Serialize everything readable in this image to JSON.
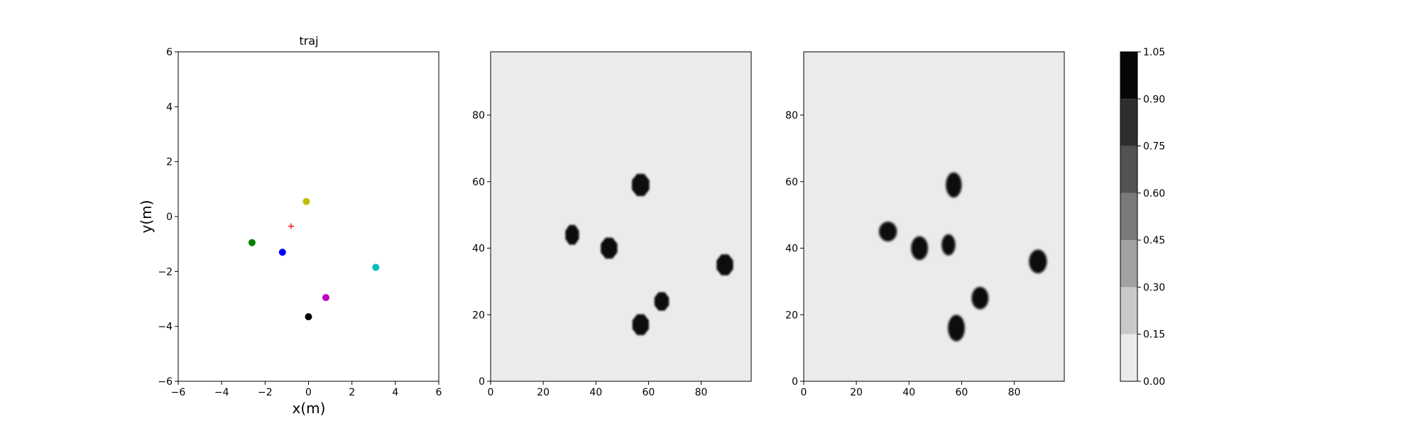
{
  "chart_data": [
    {
      "type": "scatter",
      "title": "traj",
      "xlabel": "x(m)",
      "ylabel": "y(m)",
      "xlim": [
        -6,
        6
      ],
      "ylim": [
        -6,
        6
      ],
      "xticks": [
        "−6",
        "−4",
        "−2",
        "0",
        "2",
        "4",
        "6"
      ],
      "yticks": [
        "−6",
        "−4",
        "−2",
        "0",
        "2",
        "4",
        "6"
      ],
      "grid": false,
      "points": [
        {
          "x": -0.1,
          "y": 0.55,
          "color": "#bfbf00",
          "marker": "circle"
        },
        {
          "x": -2.6,
          "y": -0.95,
          "color": "#008000",
          "marker": "circle"
        },
        {
          "x": -1.2,
          "y": -1.3,
          "color": "#0000ff",
          "marker": "circle"
        },
        {
          "x": 3.1,
          "y": -1.85,
          "color": "#00bfbf",
          "marker": "circle"
        },
        {
          "x": 0.8,
          "y": -2.95,
          "color": "#bf00bf",
          "marker": "circle"
        },
        {
          "x": 0.0,
          "y": -3.65,
          "color": "#000000",
          "marker": "circle"
        },
        {
          "x": -0.8,
          "y": -0.35,
          "color": "#ff0000",
          "marker": "plus"
        }
      ]
    },
    {
      "type": "heatmap",
      "title": "",
      "xlim": [
        0,
        99
      ],
      "ylim": [
        0,
        99
      ],
      "xticks": [
        "0",
        "20",
        "40",
        "60",
        "80"
      ],
      "yticks": [
        "0",
        "20",
        "40",
        "60",
        "80"
      ],
      "background_value": 0.0,
      "blobs": [
        {
          "x": 57,
          "y": 59,
          "rx": 3.6,
          "ry": 3.6,
          "shape": "octagon",
          "value": 1.0
        },
        {
          "x": 31,
          "y": 44,
          "rx": 2.8,
          "ry": 3.2,
          "shape": "octagon",
          "value": 1.0
        },
        {
          "x": 45,
          "y": 40,
          "rx": 3.4,
          "ry": 3.4,
          "shape": "octagon",
          "value": 1.0
        },
        {
          "x": 89,
          "y": 35,
          "rx": 3.4,
          "ry": 3.4,
          "shape": "octagon",
          "value": 1.0
        },
        {
          "x": 65,
          "y": 24,
          "rx": 3.0,
          "ry": 3.0,
          "shape": "octagon",
          "value": 1.0
        },
        {
          "x": 57,
          "y": 17,
          "rx": 3.4,
          "ry": 3.4,
          "shape": "octagon",
          "value": 1.0
        }
      ]
    },
    {
      "type": "heatmap",
      "title": "",
      "xlim": [
        0,
        99
      ],
      "ylim": [
        0,
        99
      ],
      "xticks": [
        "0",
        "20",
        "40",
        "60",
        "80"
      ],
      "yticks": [
        "0",
        "20",
        "40",
        "60",
        "80"
      ],
      "background_value": 0.0,
      "blobs": [
        {
          "x": 57,
          "y": 59,
          "rx": 2.8,
          "ry": 3.6,
          "shape": "ellipse",
          "value": 1.0
        },
        {
          "x": 32,
          "y": 45,
          "rx": 3.2,
          "ry": 2.8,
          "shape": "ellipse",
          "value": 1.0
        },
        {
          "x": 44,
          "y": 40,
          "rx": 3.0,
          "ry": 3.4,
          "shape": "ellipse",
          "value": 1.0
        },
        {
          "x": 55,
          "y": 41,
          "rx": 2.4,
          "ry": 3.0,
          "shape": "ellipse",
          "value": 1.0
        },
        {
          "x": 89,
          "y": 36,
          "rx": 3.2,
          "ry": 3.4,
          "shape": "ellipse",
          "value": 1.0
        },
        {
          "x": 67,
          "y": 25,
          "rx": 3.0,
          "ry": 3.2,
          "shape": "ellipse",
          "value": 1.0
        },
        {
          "x": 58,
          "y": 16,
          "rx": 3.0,
          "ry": 3.8,
          "shape": "ellipse",
          "value": 1.0
        }
      ]
    },
    {
      "type": "colorbar",
      "levels": [
        0.0,
        0.15,
        0.3,
        0.45,
        0.6,
        0.75,
        0.9,
        1.05
      ],
      "tick_labels": [
        "0.00",
        "0.15",
        "0.30",
        "0.45",
        "0.60",
        "0.75",
        "0.90",
        "1.05"
      ],
      "colors": [
        "#ebebeb",
        "#c9c9c9",
        "#a1a1a1",
        "#7a7a7a",
        "#525252",
        "#2d2d2d",
        "#070707"
      ]
    }
  ]
}
